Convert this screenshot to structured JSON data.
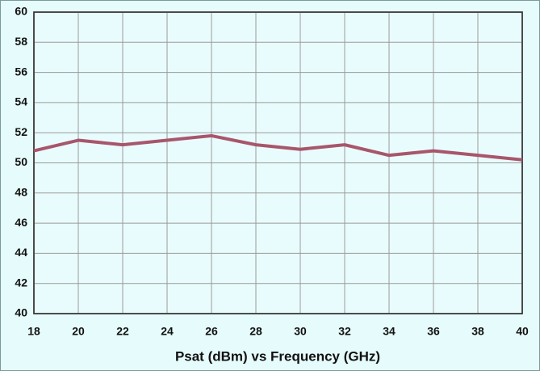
{
  "chart_data": {
    "type": "line",
    "title": "Psat (dBm) vs Frequency (GHz)",
    "x": [
      18,
      20,
      22,
      24,
      26,
      28,
      30,
      32,
      34,
      36,
      38,
      40
    ],
    "series": [
      {
        "name": "Psat",
        "color": "#a8566b",
        "values": [
          50.8,
          51.5,
          51.2,
          51.5,
          51.8,
          51.2,
          50.9,
          51.2,
          50.5,
          50.8,
          50.5,
          50.2
        ]
      }
    ],
    "xlim": [
      18,
      40
    ],
    "xticks": [
      18,
      20,
      22,
      24,
      26,
      28,
      30,
      32,
      34,
      36,
      38,
      40
    ],
    "ylim": [
      40,
      60
    ],
    "yticks": [
      40,
      42,
      44,
      46,
      48,
      50,
      52,
      54,
      56,
      58,
      60
    ],
    "grid": true
  }
}
